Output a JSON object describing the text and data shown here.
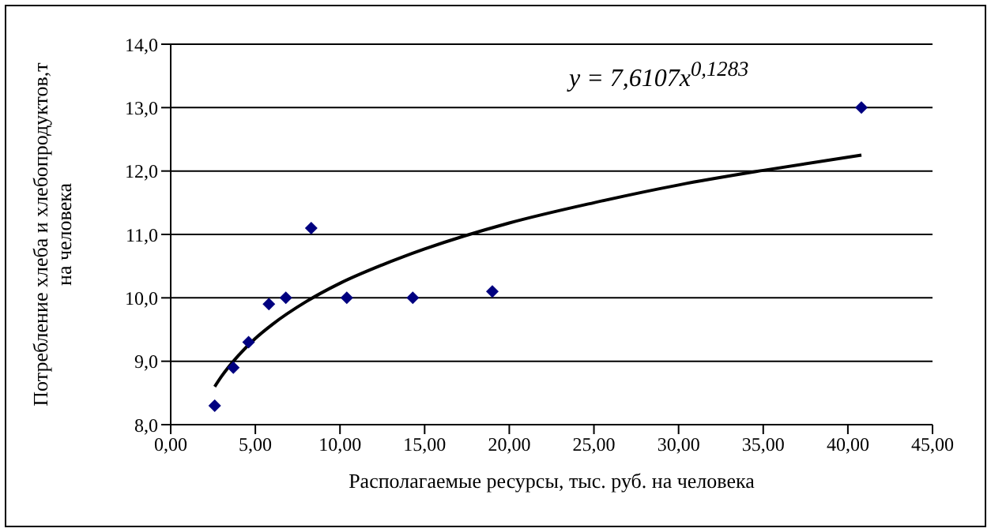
{
  "chart_data": {
    "type": "scatter",
    "xlabel": "Располагаемые ресурсы, тыс. руб. на человека",
    "ylabel": "Потребление хлеба и хлебопродуктов,т на человека",
    "annotations": [
      "y = 7,6107x$^{0,1283}$"
    ],
    "xlim": [
      0,
      45
    ],
    "xticks": [
      {
        "value": 0,
        "label": "0,00"
      },
      {
        "value": 5,
        "label": "5,00"
      },
      {
        "value": 10,
        "label": "10,00"
      },
      {
        "value": 15,
        "label": "15,00"
      },
      {
        "value": 20,
        "label": "20,00"
      },
      {
        "value": 25,
        "label": "25,00"
      },
      {
        "value": 30,
        "label": "30,00"
      },
      {
        "value": 35,
        "label": "35,00"
      },
      {
        "value": 40,
        "label": "40,00"
      },
      {
        "value": 45,
        "label": "45,00"
      }
    ],
    "ylim": [
      8,
      14
    ],
    "yticks": [
      {
        "value": 8,
        "label": "8,0"
      },
      {
        "value": 9,
        "label": "9,0"
      },
      {
        "value": 10,
        "label": "10,0"
      },
      {
        "value": 11,
        "label": "11,0"
      },
      {
        "value": 12,
        "label": "12,0"
      },
      {
        "value": 13,
        "label": "13,0"
      },
      {
        "value": 14,
        "label": "14,0"
      }
    ],
    "grid": "y",
    "series": [
      {
        "color": "#000080",
        "marker": "diamond",
        "x": [
          2.6,
          3.7,
          4.6,
          5.8,
          6.8,
          8.3,
          10.4,
          14.3,
          19.0,
          40.8
        ],
        "values": [
          8.3,
          8.9,
          9.3,
          9.9,
          10.0,
          11.1,
          10.0,
          10.0,
          10.1,
          13.0
        ]
      },
      {
        "type": "line",
        "color": "#000000",
        "marker": "none",
        "line_style": "solid",
        "x": [
          2.6,
          3,
          4,
          5,
          6,
          8,
          10,
          12.5,
          15,
          20,
          25,
          30,
          35,
          40.8
        ],
        "values": [
          8.6,
          8.76,
          9.09,
          9.36,
          9.58,
          9.94,
          10.23,
          10.52,
          10.77,
          11.18,
          11.5,
          11.78,
          12.01,
          12.25
        ]
      }
    ]
  }
}
